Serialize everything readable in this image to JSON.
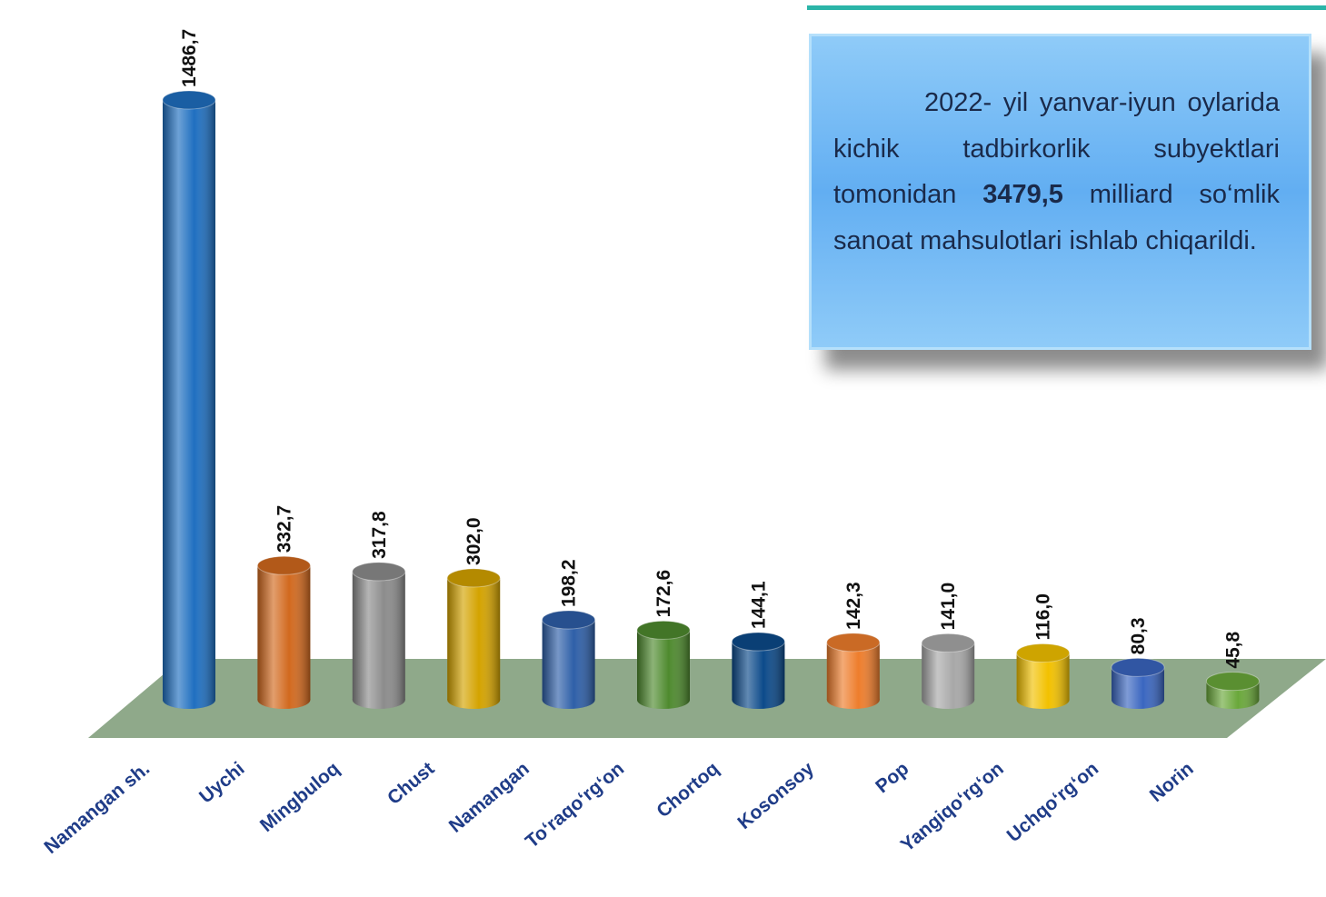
{
  "chart_data": {
    "type": "bar",
    "categories": [
      "Namangan sh.",
      "Uychi",
      "Mingbuloq",
      "Chust",
      "Namangan",
      "To‘raqo‘rg‘on",
      "Chortoq",
      "Kosonsoy",
      "Pop",
      "Yangiqo‘rg‘on",
      "Uchqo‘rg‘on",
      "Norin"
    ],
    "values": [
      1486.7,
      332.7,
      317.8,
      302.0,
      198.2,
      172.6,
      144.1,
      142.3,
      141.0,
      116.0,
      80.3,
      45.8
    ],
    "value_labels": [
      "1486,7",
      "332,7",
      "317,8",
      "302,0",
      "198,2",
      "172,6",
      "144,1",
      "142,3",
      "141,0",
      "116,0",
      "80,3",
      "45,8"
    ],
    "colors": [
      "#1f6fc0",
      "#d2691e",
      "#8c8c8c",
      "#d4a300",
      "#2e5fa8",
      "#4e8a2e",
      "#0c4a8a",
      "#ee7d2c",
      "#a8a8a8",
      "#f2c100",
      "#3a66c0",
      "#6aa83a"
    ],
    "annotation": [
      "2022- yil yanvar-iyun oylarida kichik tadbirkorlik subyektlari tomonidan",
      "3479,5",
      "milliard so‘mlik sanoat mahsulotlari ishlab chiqarildi."
    ]
  }
}
